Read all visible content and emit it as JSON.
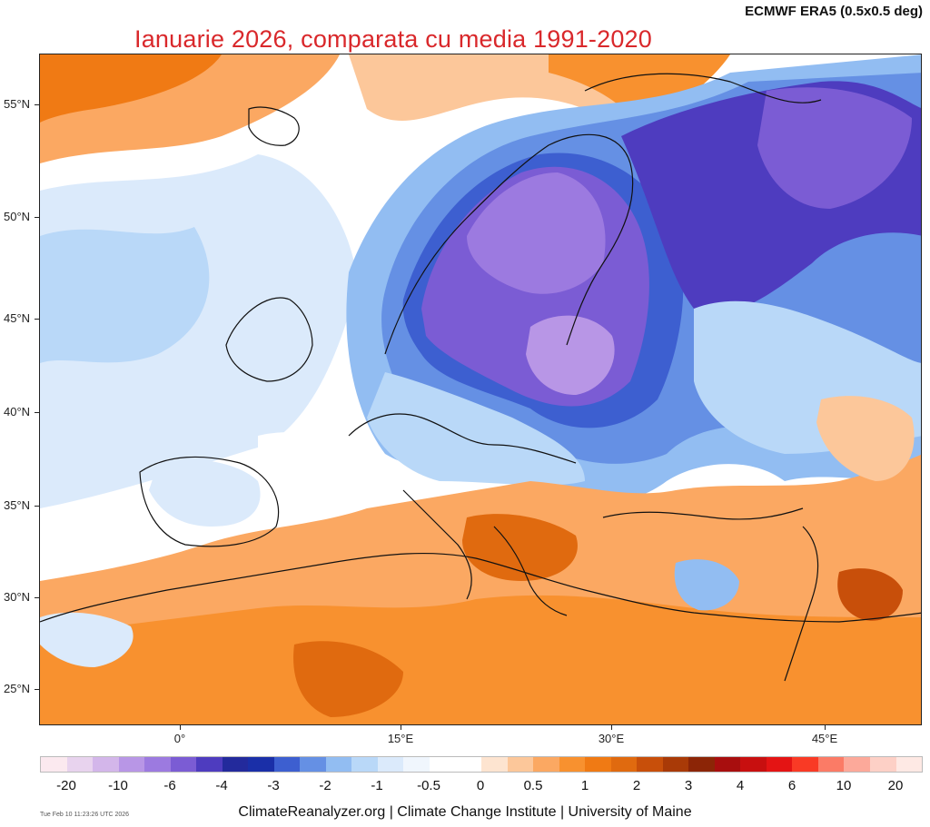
{
  "header": {
    "source": "ECMWF ERA5 (0.5x0.5 deg)",
    "title": "Ianuarie 2026, comparata cu media 1991-2020"
  },
  "axes": {
    "latitudes": [
      "55°N",
      "50°N",
      "45°N",
      "40°N",
      "35°N",
      "30°N",
      "25°N"
    ],
    "longitudes": [
      "0°",
      "15°E",
      "30°E",
      "45°E"
    ]
  },
  "legend": {
    "labels": [
      "-20",
      "-10",
      "-6",
      "-4",
      "-3",
      "-2",
      "-1",
      "-0.5",
      "0",
      "0.5",
      "1",
      "2",
      "3",
      "4",
      "6",
      "10",
      "20"
    ],
    "colors": [
      "#fbe9ef",
      "#e8d3ee",
      "#d3b6ea",
      "#b896e6",
      "#9c7ae0",
      "#7b5cd4",
      "#4e3cbf",
      "#232a9c",
      "#1a2fa8",
      "#3d5fd0",
      "#6590e4",
      "#92bdf2",
      "#b9d8f8",
      "#dbeafb",
      "#f0f6fd",
      "#ffffff",
      "#ffffff",
      "#fde4d0",
      "#fcc79a",
      "#fba862",
      "#f8912f",
      "#f07a14",
      "#e06a0f",
      "#c84f0a",
      "#a93a07",
      "#8c2506",
      "#a80e0e",
      "#c80f0f",
      "#e41414",
      "#f93a25",
      "#fb7b66",
      "#fca99a",
      "#fdd0c6",
      "#fee9e4"
    ]
  },
  "footer": {
    "credit": "ClimateReanalyzer.org | Climate Change Institute | University of Maine",
    "timestamp": "Tue Feb 10 11:23:26 UTC 2026"
  }
}
